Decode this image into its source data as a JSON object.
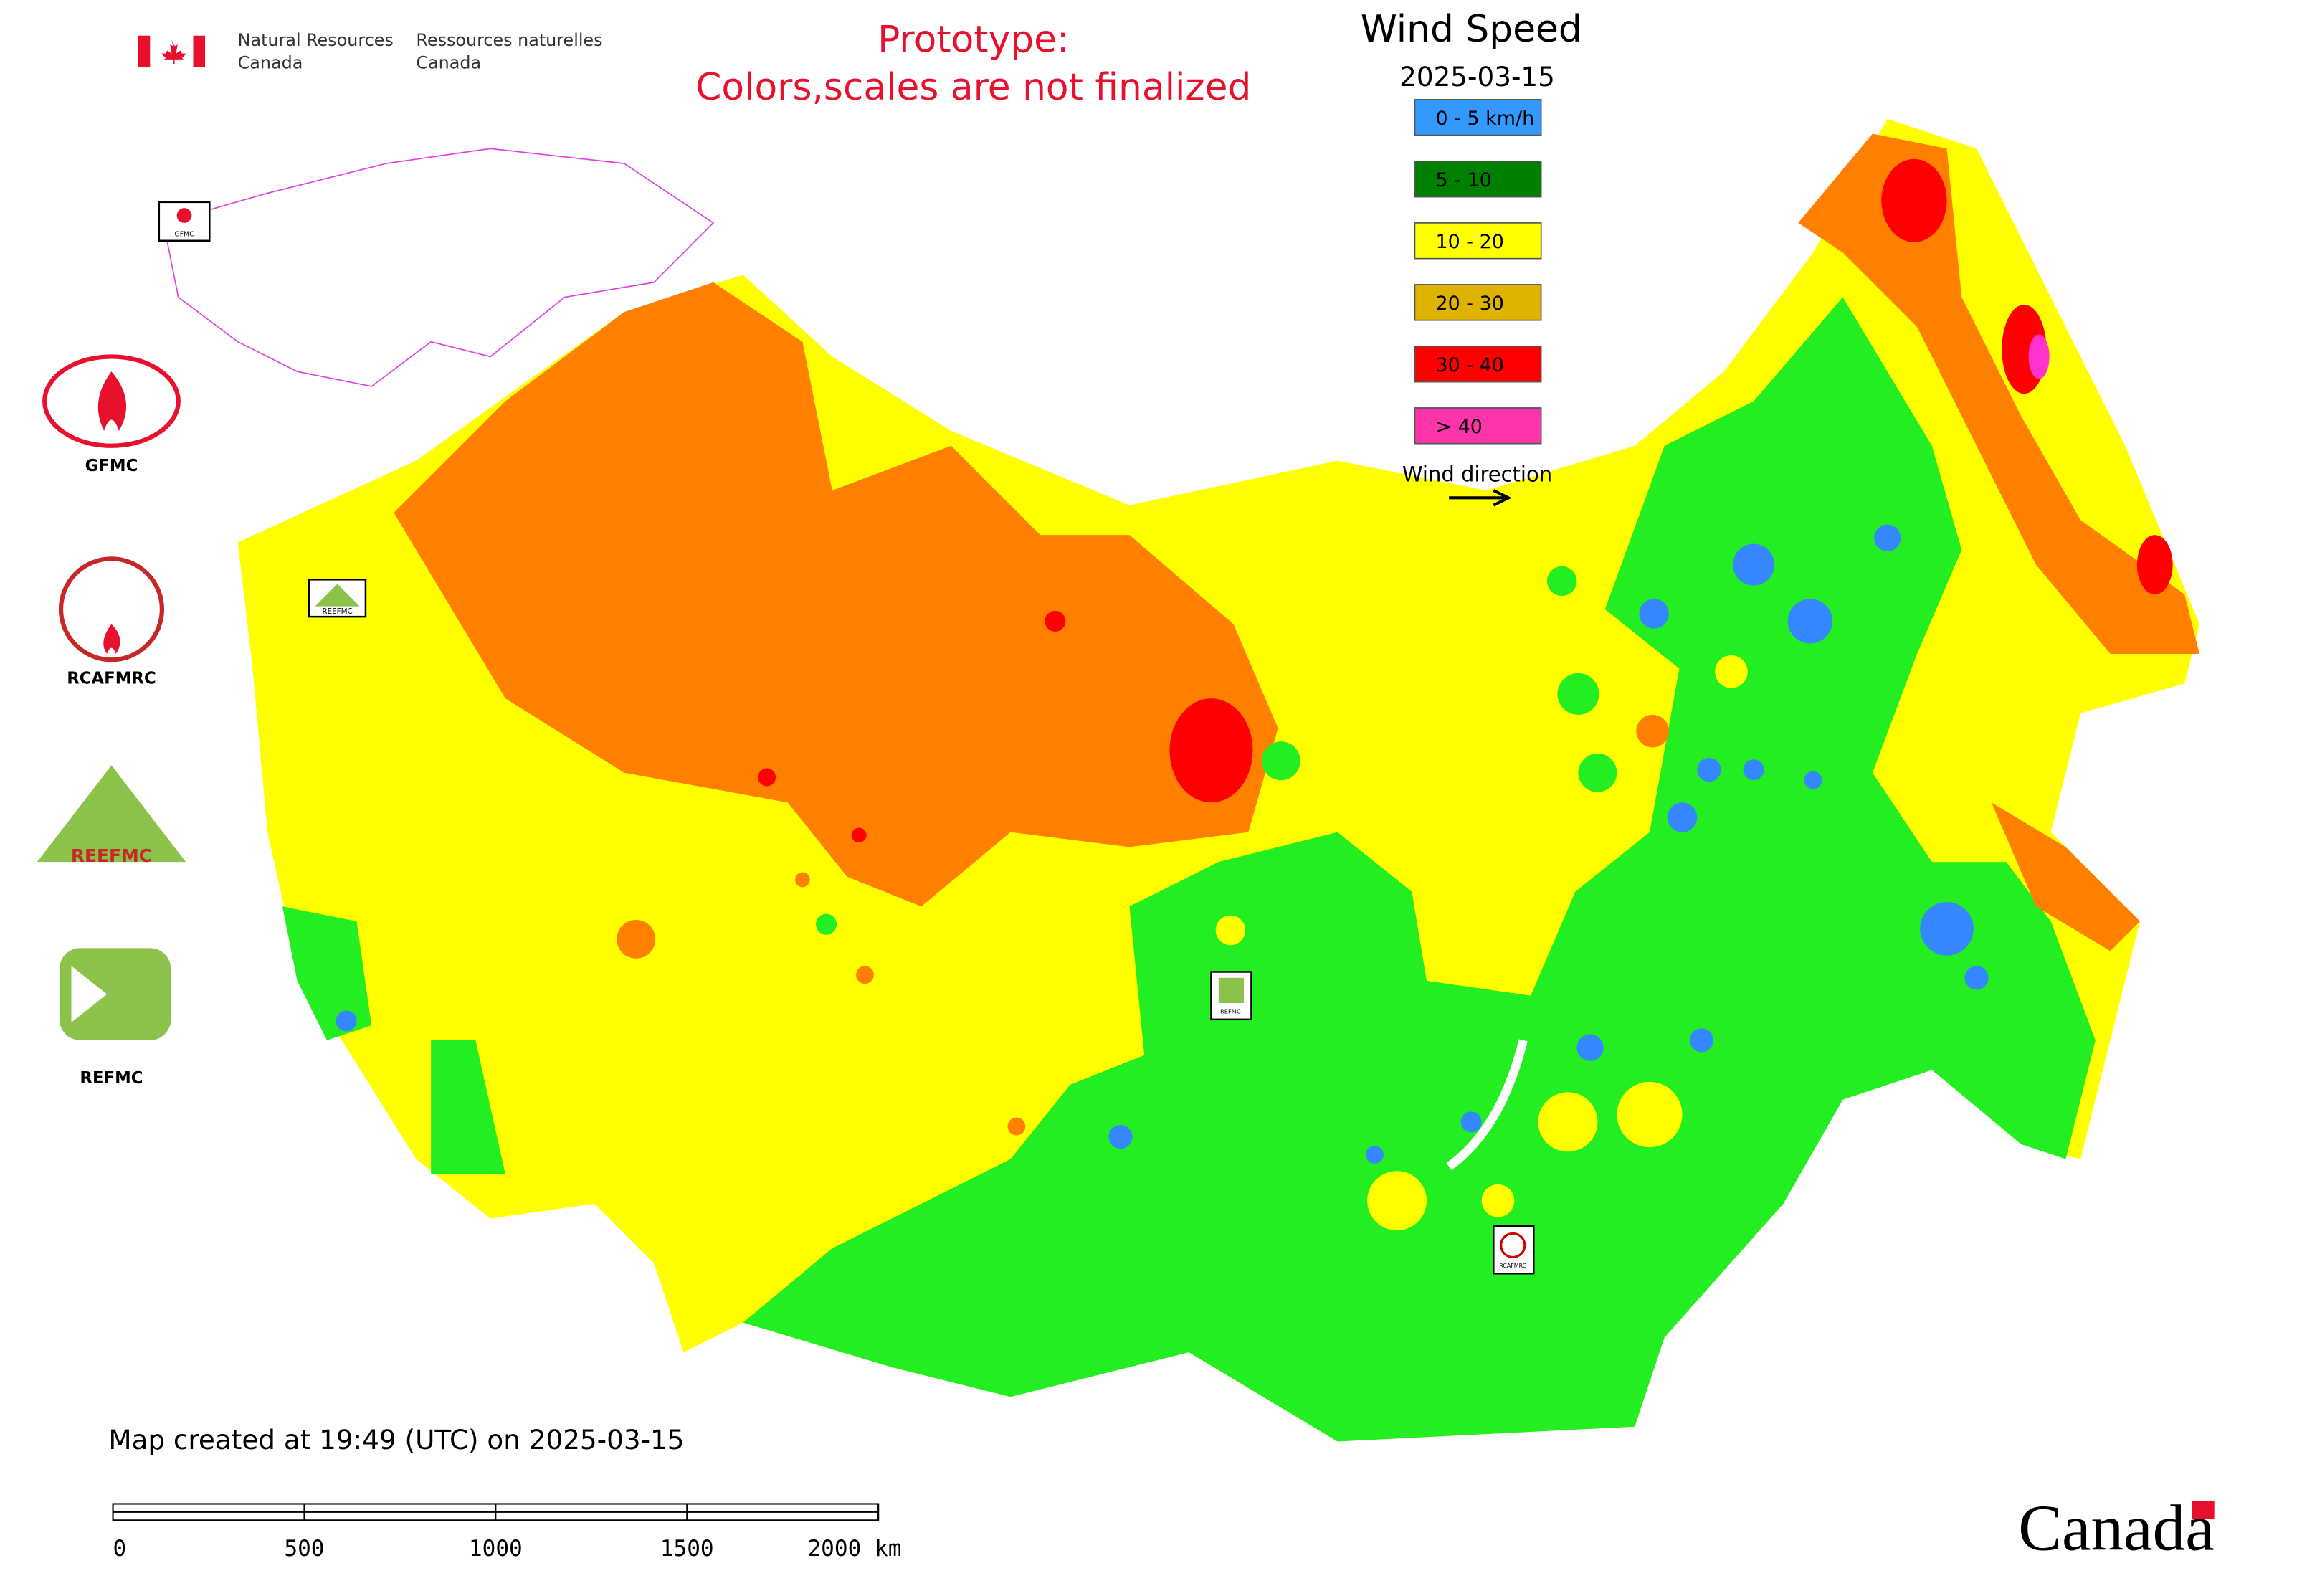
{
  "header": {
    "agency_en_1": "Natural Resources",
    "agency_en_2": "Canada",
    "agency_fr_1": "Ressources naturelles",
    "agency_fr_2": "Canada",
    "notice_1": "Prototype:",
    "notice_2": "Colors,scales are not finalized"
  },
  "legend": {
    "title": "Wind Speed",
    "date": "2025-03-15",
    "items": [
      {
        "label": "0 - 5 km/h",
        "color": "#3399ff"
      },
      {
        "label": "5 - 10",
        "color": "#008000"
      },
      {
        "label": "10 - 20",
        "color": "#ffff00"
      },
      {
        "label": "20 - 30",
        "color": "#ddb300"
      },
      {
        "label": "30 - 40",
        "color": "#ff0000"
      },
      {
        "label": "> 40",
        "color": "#ff33aa"
      }
    ],
    "direction_label": "Wind direction"
  },
  "logos": [
    "GFMC",
    "RCAFMRC",
    "REEFMC",
    "REFMC"
  ],
  "stations": [
    "GFMC",
    "REEFMC",
    "REFMC",
    "RCAFMRC"
  ],
  "footer": {
    "created": "Map created at 19:49 (UTC) on 2025-03-15",
    "scale_labels": [
      "0",
      "500",
      "1000",
      "1500",
      "2000 km"
    ],
    "brand": "Canada"
  }
}
